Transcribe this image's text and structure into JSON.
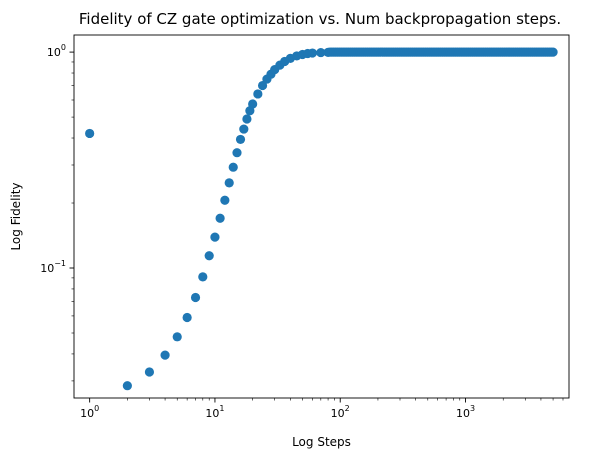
{
  "colors": {
    "series": "#1f77b4",
    "background": "#ffffff",
    "axes": "#000000"
  },
  "chart_data": {
    "type": "scatter",
    "title": "Fidelity of CZ gate optimization vs. Num backpropagation steps.",
    "xlabel": "Log Steps",
    "ylabel": "Log Fidelity",
    "xscale": "log",
    "yscale": "log",
    "xlim": [
      0.75,
      6700
    ],
    "ylim": [
      0.025,
      1.2
    ],
    "grid": false,
    "legend": "none",
    "x_ticks": [
      {
        "value": 1,
        "base": "10",
        "exp": "0"
      },
      {
        "value": 10,
        "base": "10",
        "exp": "1"
      },
      {
        "value": 100,
        "base": "10",
        "exp": "2"
      },
      {
        "value": 1000,
        "base": "10",
        "exp": "3"
      }
    ],
    "y_ticks": [
      {
        "value": 0.1,
        "base": "10",
        "exp": "−1"
      },
      {
        "value": 1,
        "base": "10",
        "exp": "0"
      }
    ],
    "series": [
      {
        "points": [
          [
            1,
            0.42
          ],
          [
            2,
            0.0285
          ],
          [
            3,
            0.033
          ],
          [
            4,
            0.0395
          ],
          [
            5,
            0.048
          ],
          [
            6,
            0.059
          ],
          [
            7,
            0.073
          ],
          [
            8,
            0.091
          ],
          [
            9,
            0.114
          ],
          [
            10,
            0.139
          ],
          [
            11,
            0.17
          ],
          [
            12,
            0.206
          ],
          [
            13,
            0.248
          ],
          [
            14,
            0.293
          ],
          [
            15,
            0.342
          ],
          [
            16,
            0.394
          ],
          [
            17,
            0.44
          ],
          [
            18,
            0.49
          ],
          [
            19,
            0.535
          ],
          [
            20,
            0.575
          ],
          [
            22,
            0.64
          ],
          [
            24,
            0.7
          ],
          [
            26,
            0.75
          ],
          [
            28,
            0.79
          ],
          [
            30,
            0.83
          ],
          [
            33,
            0.87
          ],
          [
            36,
            0.905
          ],
          [
            40,
            0.935
          ],
          [
            45,
            0.96
          ],
          [
            50,
            0.975
          ],
          [
            55,
            0.985
          ],
          [
            60,
            0.99
          ],
          [
            70,
            0.995
          ],
          [
            80,
            0.997
          ]
        ],
        "plateau": {
          "value": 1.0,
          "from": 80,
          "to": 5000
        }
      }
    ]
  }
}
